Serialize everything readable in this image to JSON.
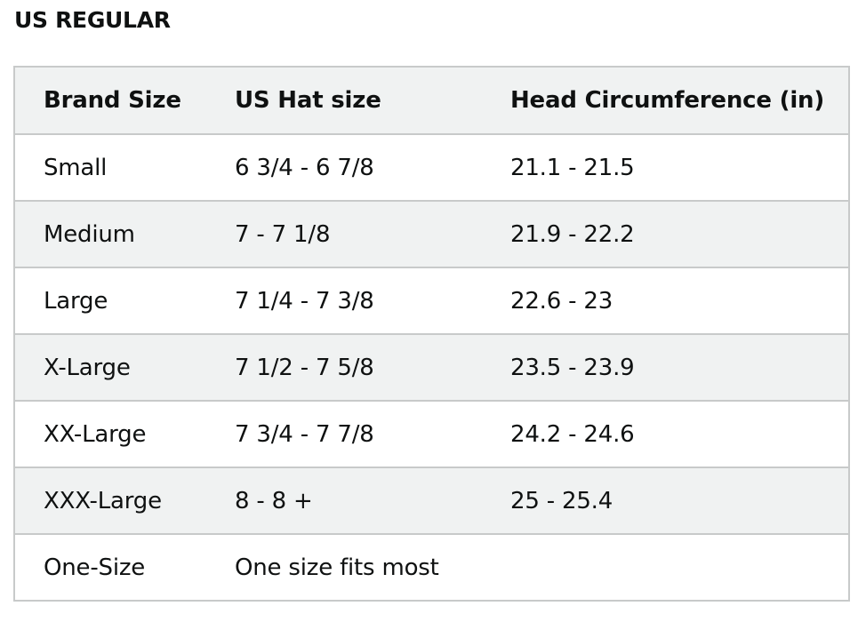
{
  "title": "US REGULAR",
  "headers": [
    "Brand Size",
    "US Hat size",
    "Head Circumference (in)"
  ],
  "rows": [
    [
      "Small",
      "6 3/4 - 6 7/8",
      "21.1 - 21.5"
    ],
    [
      "Medium",
      "7 - 7 1/8",
      "21.9 - 22.2"
    ],
    [
      "Large",
      "7 1/4 - 7 3/8",
      "22.6 - 23"
    ],
    [
      "X-Large",
      "7 1/2 - 7 5/8",
      "23.5 - 23.9"
    ],
    [
      "XX-Large",
      "7 3/4 - 7 7/8",
      "24.2 - 24.6"
    ],
    [
      "XXX-Large",
      "8 - 8 +",
      "25 - 25.4"
    ],
    [
      "One-Size",
      "One size fits most",
      ""
    ]
  ]
}
